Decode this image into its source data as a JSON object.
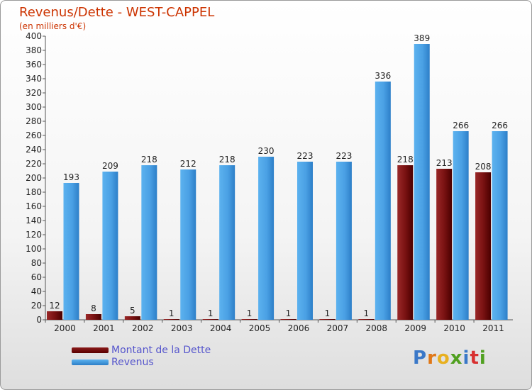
{
  "title": "Revenus/Dette - WEST-CAPPEL",
  "subtitle": "(en milliers d'€)",
  "logo": "Proxiti",
  "chart_data": {
    "type": "bar",
    "categories": [
      "2000",
      "2001",
      "2002",
      "2003",
      "2004",
      "2005",
      "2006",
      "2007",
      "2008",
      "2009",
      "2010",
      "2011"
    ],
    "series": [
      {
        "name": "Montant de la Dette",
        "color": "#7a1010",
        "values": [
          12,
          8,
          5,
          1,
          1,
          1,
          1,
          1,
          1,
          218,
          213,
          208
        ]
      },
      {
        "name": "Revenus",
        "color": "#4da3e6",
        "values": [
          193,
          209,
          218,
          212,
          218,
          230,
          223,
          223,
          336,
          389,
          266,
          266
        ]
      }
    ],
    "ylim": [
      0,
      400
    ],
    "ytick_step": 20,
    "grid": false,
    "legend_position": "bottom-left"
  }
}
